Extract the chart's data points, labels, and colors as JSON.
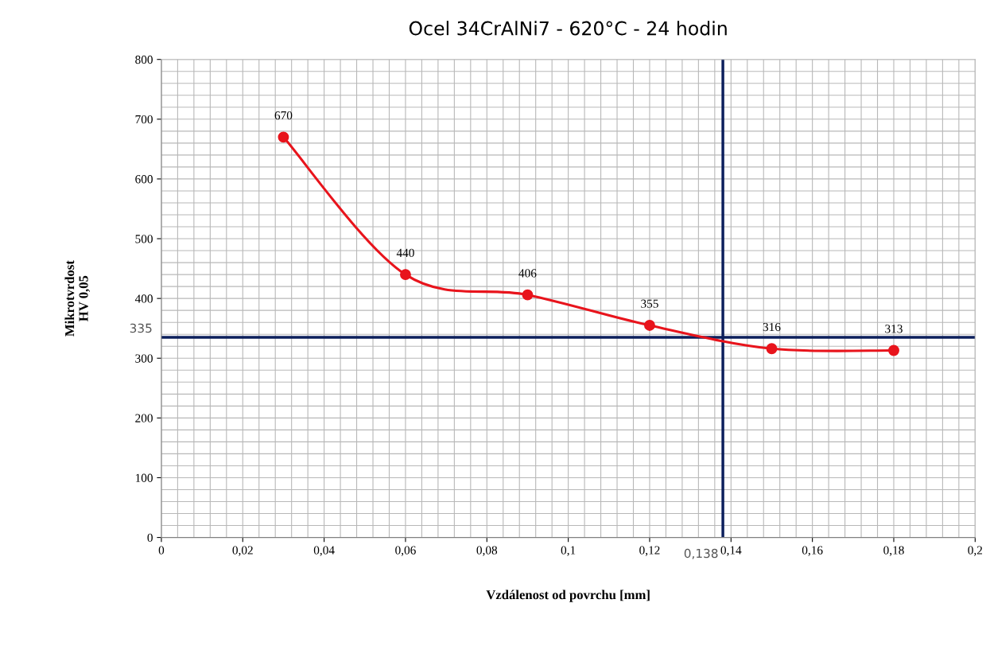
{
  "chart_data": {
    "type": "line",
    "title": "Ocel 34CrAlNi7 - 620°C - 24 hodin",
    "xlabel": "Vzdálenost od povrchu [mm]",
    "ylabel": "Mikrotvrdost\nHV 0,05",
    "x": [
      0.03,
      0.06,
      0.09,
      0.12,
      0.15,
      0.18
    ],
    "series": [
      {
        "color": "#e8141c",
        "values": [
          670,
          440,
          406,
          355,
          316,
          313
        ]
      }
    ],
    "marker": "circle",
    "data_labels": true,
    "grid": true,
    "xlim": [
      0,
      0.2
    ],
    "ylim": [
      0,
      800
    ],
    "xticks": [
      0,
      {
        "value": 0.02,
        "label": "0,02"
      },
      {
        "value": 0.04,
        "label": "0,04"
      },
      {
        "value": 0.06,
        "label": "0,06"
      },
      {
        "value": 0.08,
        "label": "0,08"
      },
      {
        "value": 0.1,
        "label": "0,1"
      },
      {
        "value": 0.12,
        "label": "0,12"
      },
      {
        "value": 0.14,
        "label": "0,14"
      },
      {
        "value": 0.16,
        "label": "0,16"
      },
      {
        "value": 0.18,
        "label": "0,18"
      },
      {
        "value": 0.2,
        "label": "0,2"
      }
    ],
    "yticks": [
      0,
      100,
      200,
      300,
      400,
      500,
      600,
      700,
      800
    ],
    "ref_lines": [
      {
        "axis": "y",
        "value": 335,
        "label": "335",
        "color": "#0c1f5c"
      },
      {
        "axis": "x",
        "value": 0.138,
        "label": "0,138",
        "color": "#0c1f5c"
      }
    ]
  }
}
